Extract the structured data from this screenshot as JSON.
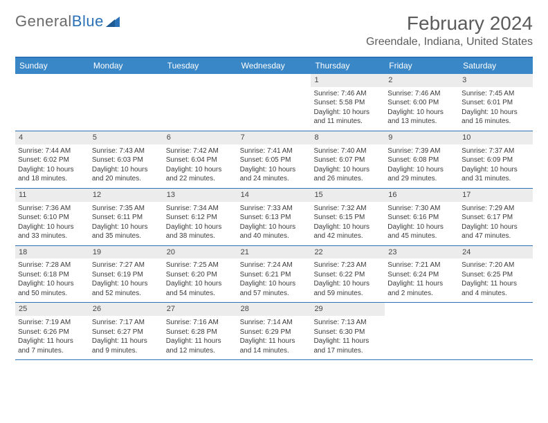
{
  "brand": {
    "part1": "General",
    "part2": "Blue"
  },
  "title": "February 2024",
  "subtitle": "Greendale, Indiana, United States",
  "colors": {
    "accent": "#3a87c8",
    "accent_border": "#2a71b8",
    "daynum_bg": "#ececec",
    "text": "#3a3a3a",
    "header_text": "#5b5b5b"
  },
  "dow": [
    "Sunday",
    "Monday",
    "Tuesday",
    "Wednesday",
    "Thursday",
    "Friday",
    "Saturday"
  ],
  "weeks": [
    [
      {
        "n": "",
        "sr": "",
        "ss": "",
        "dl": ""
      },
      {
        "n": "",
        "sr": "",
        "ss": "",
        "dl": ""
      },
      {
        "n": "",
        "sr": "",
        "ss": "",
        "dl": ""
      },
      {
        "n": "",
        "sr": "",
        "ss": "",
        "dl": ""
      },
      {
        "n": "1",
        "sr": "Sunrise: 7:46 AM",
        "ss": "Sunset: 5:58 PM",
        "dl": "Daylight: 10 hours and 11 minutes."
      },
      {
        "n": "2",
        "sr": "Sunrise: 7:46 AM",
        "ss": "Sunset: 6:00 PM",
        "dl": "Daylight: 10 hours and 13 minutes."
      },
      {
        "n": "3",
        "sr": "Sunrise: 7:45 AM",
        "ss": "Sunset: 6:01 PM",
        "dl": "Daylight: 10 hours and 16 minutes."
      }
    ],
    [
      {
        "n": "4",
        "sr": "Sunrise: 7:44 AM",
        "ss": "Sunset: 6:02 PM",
        "dl": "Daylight: 10 hours and 18 minutes."
      },
      {
        "n": "5",
        "sr": "Sunrise: 7:43 AM",
        "ss": "Sunset: 6:03 PM",
        "dl": "Daylight: 10 hours and 20 minutes."
      },
      {
        "n": "6",
        "sr": "Sunrise: 7:42 AM",
        "ss": "Sunset: 6:04 PM",
        "dl": "Daylight: 10 hours and 22 minutes."
      },
      {
        "n": "7",
        "sr": "Sunrise: 7:41 AM",
        "ss": "Sunset: 6:05 PM",
        "dl": "Daylight: 10 hours and 24 minutes."
      },
      {
        "n": "8",
        "sr": "Sunrise: 7:40 AM",
        "ss": "Sunset: 6:07 PM",
        "dl": "Daylight: 10 hours and 26 minutes."
      },
      {
        "n": "9",
        "sr": "Sunrise: 7:39 AM",
        "ss": "Sunset: 6:08 PM",
        "dl": "Daylight: 10 hours and 29 minutes."
      },
      {
        "n": "10",
        "sr": "Sunrise: 7:37 AM",
        "ss": "Sunset: 6:09 PM",
        "dl": "Daylight: 10 hours and 31 minutes."
      }
    ],
    [
      {
        "n": "11",
        "sr": "Sunrise: 7:36 AM",
        "ss": "Sunset: 6:10 PM",
        "dl": "Daylight: 10 hours and 33 minutes."
      },
      {
        "n": "12",
        "sr": "Sunrise: 7:35 AM",
        "ss": "Sunset: 6:11 PM",
        "dl": "Daylight: 10 hours and 35 minutes."
      },
      {
        "n": "13",
        "sr": "Sunrise: 7:34 AM",
        "ss": "Sunset: 6:12 PM",
        "dl": "Daylight: 10 hours and 38 minutes."
      },
      {
        "n": "14",
        "sr": "Sunrise: 7:33 AM",
        "ss": "Sunset: 6:13 PM",
        "dl": "Daylight: 10 hours and 40 minutes."
      },
      {
        "n": "15",
        "sr": "Sunrise: 7:32 AM",
        "ss": "Sunset: 6:15 PM",
        "dl": "Daylight: 10 hours and 42 minutes."
      },
      {
        "n": "16",
        "sr": "Sunrise: 7:30 AM",
        "ss": "Sunset: 6:16 PM",
        "dl": "Daylight: 10 hours and 45 minutes."
      },
      {
        "n": "17",
        "sr": "Sunrise: 7:29 AM",
        "ss": "Sunset: 6:17 PM",
        "dl": "Daylight: 10 hours and 47 minutes."
      }
    ],
    [
      {
        "n": "18",
        "sr": "Sunrise: 7:28 AM",
        "ss": "Sunset: 6:18 PM",
        "dl": "Daylight: 10 hours and 50 minutes."
      },
      {
        "n": "19",
        "sr": "Sunrise: 7:27 AM",
        "ss": "Sunset: 6:19 PM",
        "dl": "Daylight: 10 hours and 52 minutes."
      },
      {
        "n": "20",
        "sr": "Sunrise: 7:25 AM",
        "ss": "Sunset: 6:20 PM",
        "dl": "Daylight: 10 hours and 54 minutes."
      },
      {
        "n": "21",
        "sr": "Sunrise: 7:24 AM",
        "ss": "Sunset: 6:21 PM",
        "dl": "Daylight: 10 hours and 57 minutes."
      },
      {
        "n": "22",
        "sr": "Sunrise: 7:23 AM",
        "ss": "Sunset: 6:22 PM",
        "dl": "Daylight: 10 hours and 59 minutes."
      },
      {
        "n": "23",
        "sr": "Sunrise: 7:21 AM",
        "ss": "Sunset: 6:24 PM",
        "dl": "Daylight: 11 hours and 2 minutes."
      },
      {
        "n": "24",
        "sr": "Sunrise: 7:20 AM",
        "ss": "Sunset: 6:25 PM",
        "dl": "Daylight: 11 hours and 4 minutes."
      }
    ],
    [
      {
        "n": "25",
        "sr": "Sunrise: 7:19 AM",
        "ss": "Sunset: 6:26 PM",
        "dl": "Daylight: 11 hours and 7 minutes."
      },
      {
        "n": "26",
        "sr": "Sunrise: 7:17 AM",
        "ss": "Sunset: 6:27 PM",
        "dl": "Daylight: 11 hours and 9 minutes."
      },
      {
        "n": "27",
        "sr": "Sunrise: 7:16 AM",
        "ss": "Sunset: 6:28 PM",
        "dl": "Daylight: 11 hours and 12 minutes."
      },
      {
        "n": "28",
        "sr": "Sunrise: 7:14 AM",
        "ss": "Sunset: 6:29 PM",
        "dl": "Daylight: 11 hours and 14 minutes."
      },
      {
        "n": "29",
        "sr": "Sunrise: 7:13 AM",
        "ss": "Sunset: 6:30 PM",
        "dl": "Daylight: 11 hours and 17 minutes."
      },
      {
        "n": "",
        "sr": "",
        "ss": "",
        "dl": ""
      },
      {
        "n": "",
        "sr": "",
        "ss": "",
        "dl": ""
      }
    ]
  ]
}
